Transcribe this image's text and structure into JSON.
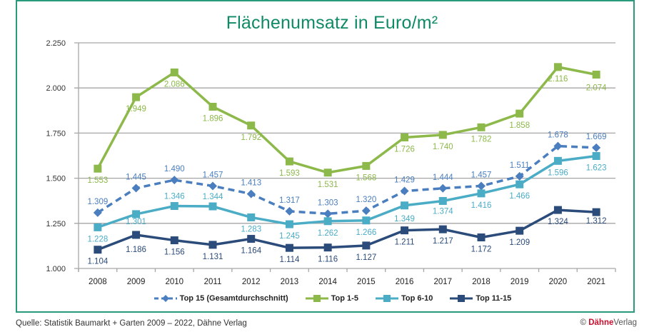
{
  "chart_data": {
    "type": "line",
    "title": "Flächenumsatz in Euro/m²",
    "xlabel": "",
    "ylabel": "",
    "categories": [
      "2008",
      "2009",
      "2010",
      "2011",
      "2012",
      "2013",
      "2014",
      "2015",
      "2016",
      "2017",
      "2018",
      "2019",
      "2020",
      "2021"
    ],
    "ylim": [
      1000,
      2250
    ],
    "yticks": [
      1000,
      1250,
      1500,
      1750,
      2000,
      2250
    ],
    "ytick_labels": [
      "1.000",
      "1.250",
      "1.500",
      "1.750",
      "2.000",
      "2.250"
    ],
    "grid": true,
    "legend_position": "bottom",
    "series": [
      {
        "name": "Top 15 (Gesamtdurchschnitt)",
        "color": "#4a7ebf",
        "style": "dashed",
        "marker": "diamond",
        "values": [
          1309,
          1445,
          1490,
          1457,
          1413,
          1317,
          1303,
          1320,
          1429,
          1444,
          1457,
          1511,
          1678,
          1669
        ],
        "labels": [
          "1.309",
          "1.445",
          "1.490",
          "1.457",
          "1.413",
          "1.317",
          "1.303",
          "1.320",
          "1.429",
          "1.444",
          "1.457",
          "1.511",
          "1.678",
          "1.669"
        ]
      },
      {
        "name": "Top 1-5",
        "color": "#8db84a",
        "style": "solid",
        "marker": "square",
        "values": [
          1553,
          1949,
          2086,
          1896,
          1792,
          1593,
          1531,
          1568,
          1726,
          1740,
          1782,
          1858,
          2116,
          2074
        ],
        "labels": [
          "1.553",
          "1.949",
          "2.086",
          "1.896",
          "1.792",
          "1.593",
          "1.531",
          "1.568",
          "1.726",
          "1.740",
          "1.782",
          "1.858",
          "2.116",
          "2.074"
        ]
      },
      {
        "name": "Top 6-10",
        "color": "#4bacc6",
        "style": "solid",
        "marker": "square",
        "values": [
          1228,
          1301,
          1346,
          1344,
          1283,
          1245,
          1262,
          1266,
          1349,
          1374,
          1416,
          1466,
          1596,
          1623
        ],
        "labels": [
          "1.228",
          "1.301",
          "1.346",
          "1.344",
          "1.283",
          "1.245",
          "1.262",
          "1.266",
          "1.349",
          "1.374",
          "1.416",
          "1.466",
          "1.596",
          "1.623"
        ]
      },
      {
        "name": "Top 11-15",
        "color": "#2b4b7a",
        "style": "solid",
        "marker": "square",
        "values": [
          1104,
          1186,
          1156,
          1131,
          1164,
          1114,
          1116,
          1127,
          1211,
          1217,
          1172,
          1209,
          1324,
          1312
        ],
        "labels": [
          "1.104",
          "1.186",
          "1.156",
          "1.131",
          "1.164",
          "1.114",
          "1.116",
          "1.127",
          "1.211",
          "1.217",
          "1.172",
          "1.209",
          "1.324",
          "1.312"
        ]
      }
    ]
  },
  "footer": {
    "source": "Quelle: Statistik Baumarkt + Garten 2009 – 2022, Dähne Verlag",
    "copyright_symbol": "©",
    "brand": "Dähne",
    "brand_suffix": "Verlag"
  },
  "colors": {
    "frame": "#2a9a7c",
    "title": "#0f8a66",
    "grid": "#a6a6a6"
  }
}
